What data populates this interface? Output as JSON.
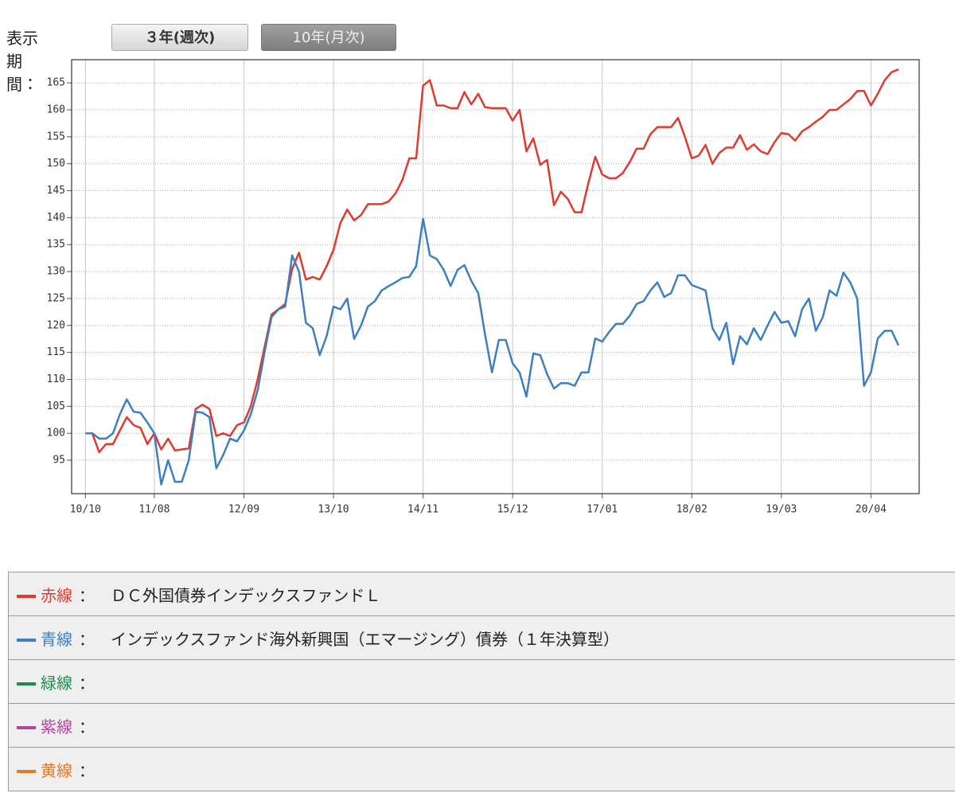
{
  "period_selector": {
    "label": "表示期間：",
    "buttons": [
      "３年(週次)",
      "10年(月次)"
    ]
  },
  "chart_data": {
    "type": "line",
    "x": [
      "10/10",
      "10/11",
      "10/12",
      "11/01",
      "11/02",
      "11/03",
      "11/04",
      "11/05",
      "11/06",
      "11/07",
      "11/08",
      "11/09",
      "11/10",
      "11/11",
      "11/12",
      "12/01",
      "12/02",
      "12/03",
      "12/04",
      "12/05",
      "12/06",
      "12/07",
      "12/08",
      "12/09",
      "12/10",
      "12/11",
      "12/12",
      "13/01",
      "13/02",
      "13/03",
      "13/04",
      "13/05",
      "13/06",
      "13/07",
      "13/08",
      "13/09",
      "13/10",
      "13/11",
      "13/12",
      "14/01",
      "14/02",
      "14/03",
      "14/04",
      "14/05",
      "14/06",
      "14/07",
      "14/08",
      "14/09",
      "14/10",
      "14/11",
      "14/12",
      "15/01",
      "15/02",
      "15/03",
      "15/04",
      "15/05",
      "15/06",
      "15/07",
      "15/08",
      "15/09",
      "15/10",
      "15/11",
      "15/12",
      "16/01",
      "16/02",
      "16/03",
      "16/04",
      "16/05",
      "16/06",
      "16/07",
      "16/08",
      "16/09",
      "16/10",
      "16/11",
      "16/12",
      "17/01",
      "17/02",
      "17/03",
      "17/04",
      "17/05",
      "17/06",
      "17/07",
      "17/08",
      "17/09",
      "17/10",
      "17/11",
      "17/12",
      "18/01",
      "18/02",
      "18/03",
      "18/04",
      "18/05",
      "18/06",
      "18/07",
      "18/08",
      "18/09",
      "18/10",
      "18/11",
      "18/12",
      "19/01",
      "19/02",
      "19/03",
      "19/04",
      "19/05",
      "19/06",
      "19/07",
      "19/08",
      "19/09",
      "19/10",
      "19/11",
      "19/12",
      "20/01",
      "20/02",
      "20/03",
      "20/04",
      "20/05",
      "20/06",
      "20/07",
      "20/08"
    ],
    "series": [
      {
        "name": "ＤＣ外国債券インデックスファンドＬ",
        "color": "#e03a2e",
        "values": [
          100,
          100,
          96.5,
          98,
          98,
          100.5,
          103,
          101.5,
          101,
          98,
          100,
          97,
          99,
          96.8,
          97,
          97.2,
          104.5,
          105.3,
          104.5,
          99.5,
          100,
          99.5,
          101.5,
          102,
          105,
          110,
          116,
          122,
          123,
          124,
          130.5,
          133.5,
          128.5,
          129,
          128.5,
          131,
          134,
          139,
          141.5,
          139.5,
          140.5,
          142.5,
          142.5,
          142.5,
          143,
          144.5,
          147,
          151,
          151,
          164.5,
          165.5,
          160.8,
          160.8,
          160.3,
          160.3,
          163.3,
          161,
          163,
          160.5,
          160.3,
          160.3,
          160.3,
          158,
          160,
          152.3,
          154.7,
          149.8,
          150.7,
          142.3,
          144.8,
          143.5,
          141,
          141,
          146.5,
          151.3,
          148,
          147.3,
          147.3,
          148.3,
          150.3,
          152.8,
          152.8,
          155.5,
          156.8,
          156.8,
          156.8,
          158.5,
          155,
          151,
          151.5,
          153.5,
          150,
          152,
          153,
          153,
          155.3,
          152.6,
          153.6,
          152.3,
          151.8,
          154,
          155.7,
          155.5,
          154.3,
          156,
          156.8,
          157.8,
          158.7,
          160,
          160,
          161,
          162,
          163.5,
          163.5,
          160.8,
          163,
          165.5,
          167,
          167.5
        ]
      },
      {
        "name": "インデックスファンド海外新興国（エマージング）債券（１年決算型）",
        "color": "#3d7fc1",
        "values": [
          100,
          100,
          99,
          99,
          100,
          103.5,
          106.3,
          104,
          103.8,
          102,
          100,
          90.5,
          95,
          91,
          91,
          95,
          104,
          103.8,
          103,
          93.5,
          96,
          99,
          98.5,
          100.5,
          103.5,
          108,
          115,
          121.5,
          123,
          123.5,
          133,
          130,
          120.5,
          119.5,
          114.5,
          118,
          123.5,
          123,
          125,
          117.5,
          120,
          123.5,
          124.5,
          126.5,
          127.3,
          128,
          128.8,
          129,
          131,
          139.8,
          133,
          132.3,
          130.3,
          127.3,
          130.3,
          131.2,
          128.3,
          126,
          118.3,
          111.3,
          117.3,
          117.3,
          113,
          111.3,
          106.8,
          114.8,
          114.5,
          111,
          108.3,
          109.3,
          109.3,
          108.8,
          111.3,
          111.3,
          117.6,
          117,
          118.8,
          120.3,
          120.3,
          121.8,
          124,
          124.5,
          126.5,
          128,
          125.3,
          126,
          129.3,
          129.3,
          127.5,
          127,
          126.5,
          119.5,
          117.3,
          120.5,
          112.8,
          118,
          116.5,
          119.5,
          117.3,
          120,
          122.5,
          120.5,
          120.8,
          118,
          123,
          125,
          119,
          121.5,
          126.5,
          125.5,
          129.8,
          128,
          125,
          108.8,
          111.3,
          117.6,
          119,
          119,
          116.3
        ]
      }
    ],
    "xlim": [
      "10/08",
      "20/11"
    ],
    "xticks": [
      "10/10",
      "11/08",
      "12/09",
      "13/10",
      "14/11",
      "15/12",
      "17/01",
      "18/02",
      "19/03",
      "20/04"
    ],
    "ylim": [
      88.8,
      169.3
    ],
    "yticks": [
      95,
      100,
      105,
      110,
      115,
      120,
      125,
      130,
      135,
      140,
      145,
      150,
      155,
      160,
      165
    ],
    "grid": true
  },
  "legend_table": {
    "separator": "：",
    "rows": [
      {
        "label": "赤線",
        "color": "#e03a2e"
      },
      {
        "label": "青線",
        "color": "#3d7fc1"
      },
      {
        "label": "緑線",
        "color": "#1f8a4c"
      },
      {
        "label": "紫線",
        "color": "#b0449e"
      },
      {
        "label": "黄線",
        "color": "#e07b24"
      }
    ]
  }
}
